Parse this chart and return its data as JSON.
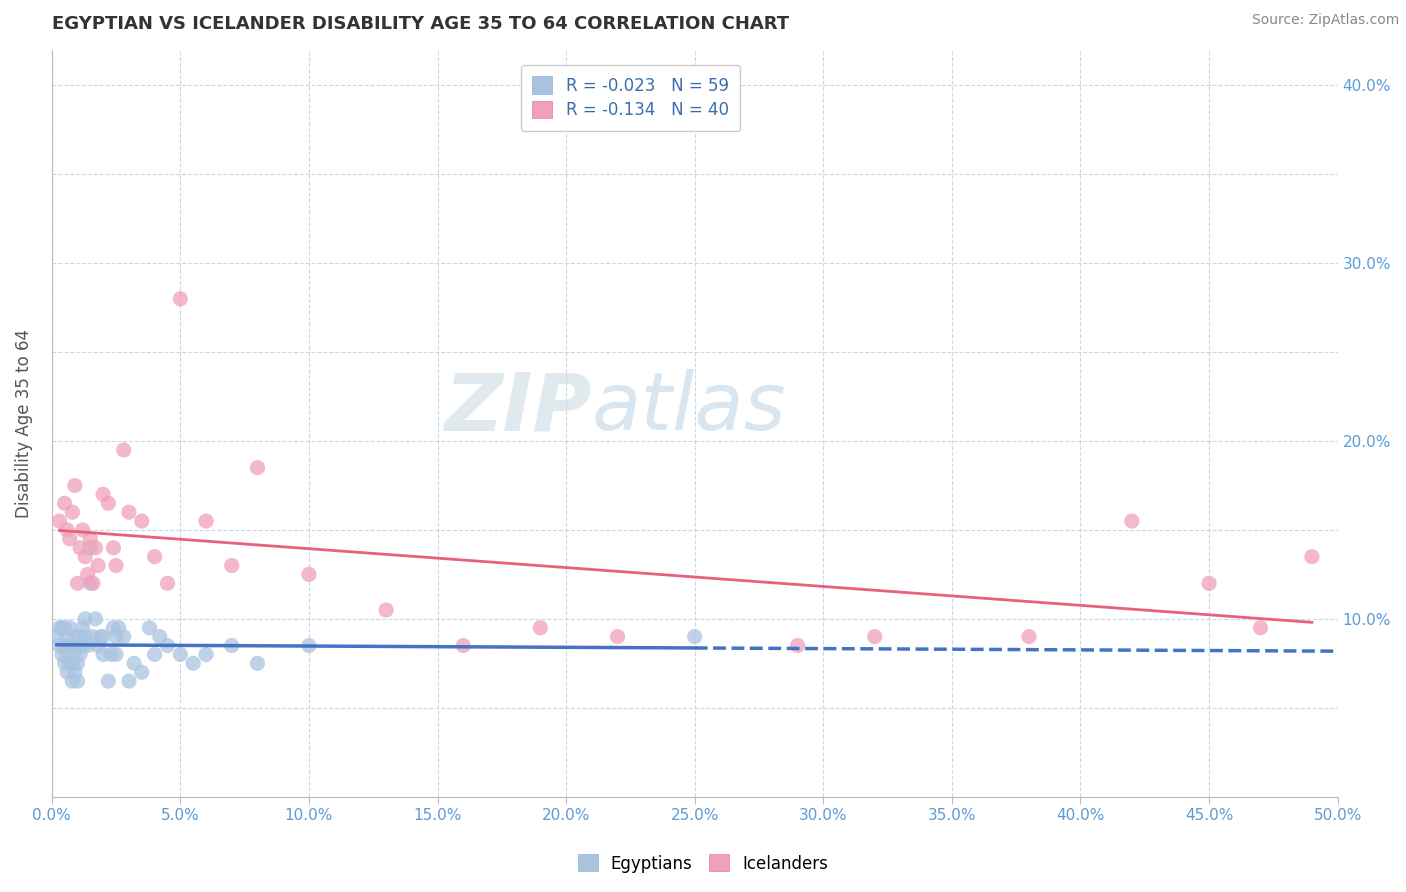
{
  "title": "EGYPTIAN VS ICELANDER DISABILITY AGE 35 TO 64 CORRELATION CHART",
  "source": "Source: ZipAtlas.com",
  "ylabel": "Disability Age 35 to 64",
  "xlim": [
    0.0,
    0.5
  ],
  "ylim": [
    0.0,
    0.42
  ],
  "xtick_vals": [
    0.0,
    0.05,
    0.1,
    0.15,
    0.2,
    0.25,
    0.3,
    0.35,
    0.4,
    0.45,
    0.5
  ],
  "ytick_vals": [
    0.0,
    0.05,
    0.1,
    0.15,
    0.2,
    0.25,
    0.3,
    0.35,
    0.4
  ],
  "ytick_labels_right": [
    "",
    "",
    "10.0%",
    "",
    "20.0%",
    "",
    "30.0%",
    "",
    "40.0%"
  ],
  "legend_r1": "-0.023",
  "legend_n1": "59",
  "legend_r2": "-0.134",
  "legend_n2": "40",
  "color_egyptian": "#aac4e0",
  "color_icelander": "#f0a0b8",
  "color_line_egyptian": "#4472c4",
  "color_line_icelander": "#e8607a",
  "watermark_zip": "ZIP",
  "watermark_atlas": "atlas",
  "egyptians_x": [
    0.002,
    0.003,
    0.003,
    0.004,
    0.004,
    0.005,
    0.005,
    0.005,
    0.006,
    0.006,
    0.006,
    0.007,
    0.007,
    0.007,
    0.008,
    0.008,
    0.008,
    0.009,
    0.009,
    0.009,
    0.01,
    0.01,
    0.01,
    0.011,
    0.011,
    0.012,
    0.012,
    0.013,
    0.013,
    0.014,
    0.015,
    0.015,
    0.016,
    0.017,
    0.018,
    0.019,
    0.02,
    0.02,
    0.022,
    0.023,
    0.024,
    0.025,
    0.025,
    0.026,
    0.028,
    0.03,
    0.032,
    0.035,
    0.038,
    0.04,
    0.042,
    0.045,
    0.05,
    0.055,
    0.06,
    0.07,
    0.08,
    0.1,
    0.25
  ],
  "egyptians_y": [
    0.09,
    0.095,
    0.085,
    0.08,
    0.095,
    0.075,
    0.085,
    0.095,
    0.07,
    0.08,
    0.09,
    0.075,
    0.085,
    0.095,
    0.065,
    0.075,
    0.085,
    0.07,
    0.08,
    0.09,
    0.065,
    0.075,
    0.085,
    0.08,
    0.09,
    0.085,
    0.095,
    0.09,
    0.1,
    0.085,
    0.12,
    0.14,
    0.09,
    0.1,
    0.085,
    0.09,
    0.08,
    0.09,
    0.065,
    0.08,
    0.095,
    0.08,
    0.09,
    0.095,
    0.09,
    0.065,
    0.075,
    0.07,
    0.095,
    0.08,
    0.09,
    0.085,
    0.08,
    0.075,
    0.08,
    0.085,
    0.075,
    0.085,
    0.09
  ],
  "icelanders_x": [
    0.003,
    0.005,
    0.006,
    0.007,
    0.008,
    0.009,
    0.01,
    0.011,
    0.012,
    0.013,
    0.014,
    0.015,
    0.016,
    0.017,
    0.018,
    0.02,
    0.022,
    0.024,
    0.025,
    0.028,
    0.03,
    0.035,
    0.04,
    0.045,
    0.05,
    0.06,
    0.07,
    0.08,
    0.1,
    0.13,
    0.16,
    0.19,
    0.22,
    0.29,
    0.32,
    0.38,
    0.42,
    0.45,
    0.47,
    0.49
  ],
  "icelanders_y": [
    0.155,
    0.165,
    0.15,
    0.145,
    0.16,
    0.175,
    0.12,
    0.14,
    0.15,
    0.135,
    0.125,
    0.145,
    0.12,
    0.14,
    0.13,
    0.17,
    0.165,
    0.14,
    0.13,
    0.195,
    0.16,
    0.155,
    0.135,
    0.12,
    0.28,
    0.155,
    0.13,
    0.185,
    0.125,
    0.105,
    0.085,
    0.095,
    0.09,
    0.085,
    0.09,
    0.09,
    0.155,
    0.12,
    0.095,
    0.135
  ],
  "eg_line_x_end": 0.25,
  "eg_line_dash_end": 0.5
}
